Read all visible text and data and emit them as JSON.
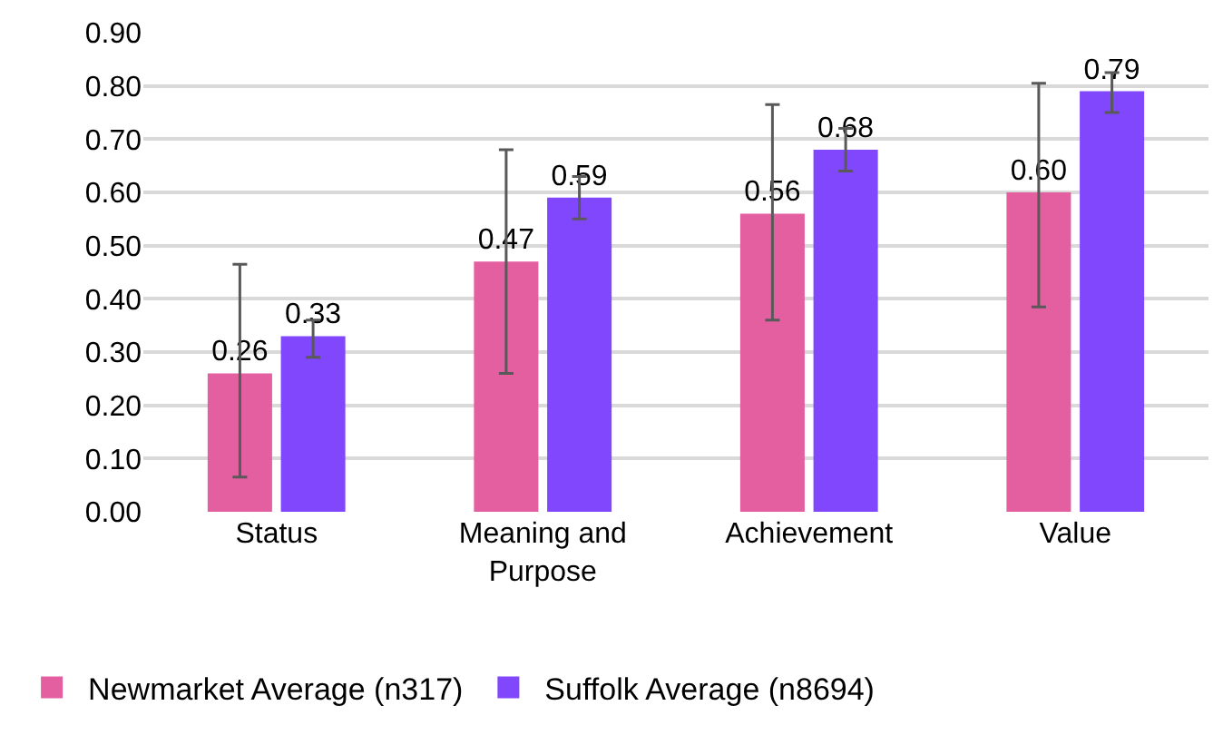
{
  "chart_data": {
    "type": "bar",
    "categories": [
      "Status",
      "Meaning and Purpose",
      "Achievement",
      "Value"
    ],
    "series": [
      {
        "name": "Newmarket Average (n317)",
        "color": "#e35fa0",
        "values": [
          0.26,
          0.47,
          0.56,
          0.6
        ],
        "value_labels": [
          "0.26",
          "0.47",
          "0.56",
          "0.60"
        ],
        "errors": [
          [
            0.065,
            0.465
          ],
          [
            0.26,
            0.68
          ],
          [
            0.36,
            0.765
          ],
          [
            0.385,
            0.805
          ]
        ]
      },
      {
        "name": "Suffolk Average (n8694)",
        "color": "#8147fc",
        "values": [
          0.33,
          0.59,
          0.68,
          0.79
        ],
        "value_labels": [
          "0.33",
          "0.59",
          "0.68",
          "0.79"
        ],
        "errors": [
          [
            0.29,
            0.36
          ],
          [
            0.55,
            0.63
          ],
          [
            0.64,
            0.72
          ],
          [
            0.75,
            0.825
          ]
        ]
      }
    ],
    "ylim": [
      0,
      0.9
    ],
    "yticks": [
      {
        "value": 0,
        "label": "0.00"
      },
      {
        "value": 0.1,
        "label": "0.10"
      },
      {
        "value": 0.2,
        "label": "0.20"
      },
      {
        "value": 0.3,
        "label": "0.30"
      },
      {
        "value": 0.4,
        "label": "0.40"
      },
      {
        "value": 0.5,
        "label": "0.50"
      },
      {
        "value": 0.6,
        "label": "0.60"
      },
      {
        "value": 0.7,
        "label": "0.70"
      },
      {
        "value": 0.8,
        "label": "0.80"
      },
      {
        "value": 0.9,
        "label": "0.90"
      }
    ],
    "grid": "y",
    "legend": "bottom left"
  }
}
